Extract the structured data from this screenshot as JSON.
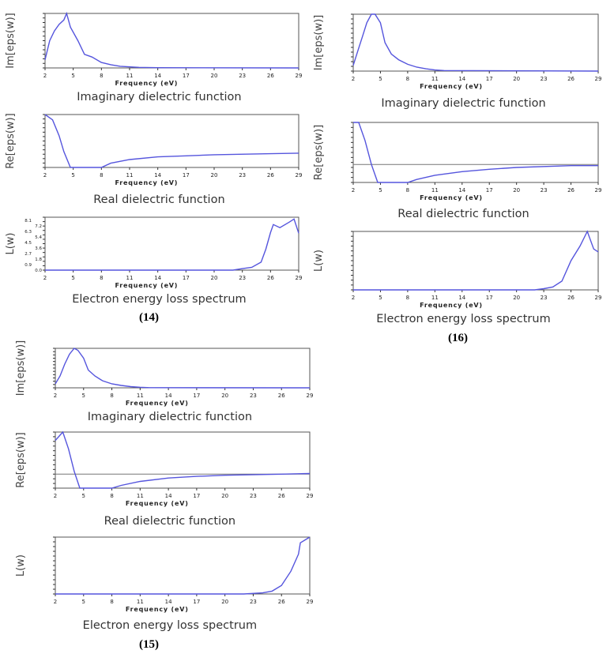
{
  "chart_data": [
    {
      "id": "p14a",
      "type": "line",
      "title": "Imaginary dielectric function",
      "xlabel": "Frequency (eV)",
      "ylabel": "Im[eps(w)]",
      "xlim": [
        2,
        29
      ],
      "ylim": [
        0,
        1
      ],
      "xticks": [
        2,
        5,
        8,
        11,
        14,
        17,
        20,
        23,
        26,
        29
      ],
      "series": [
        {
          "name": "Im",
          "x": [
            2,
            2.5,
            3,
            3.5,
            4,
            4.3,
            4.7,
            5.5,
            6.2,
            7,
            8,
            9,
            10,
            12,
            14,
            29
          ],
          "y": [
            0.15,
            0.5,
            0.68,
            0.8,
            0.88,
            1,
            0.75,
            0.5,
            0.25,
            0.2,
            0.1,
            0.06,
            0.03,
            0.01,
            0.004,
            0
          ]
        }
      ]
    },
    {
      "id": "p14b",
      "type": "line",
      "title": "Real dielectric function",
      "xlabel": "Frequency (eV)",
      "ylabel": "Re[eps(w)]",
      "xlim": [
        2,
        29
      ],
      "ylim": [
        0,
        1
      ],
      "xticks": [
        2,
        5,
        8,
        11,
        14,
        17,
        20,
        23,
        26,
        29
      ],
      "series": [
        {
          "name": "Re",
          "x": [
            2,
            2.8,
            3.5,
            4,
            4.7,
            8,
            9,
            11,
            14,
            17,
            20,
            26,
            29
          ],
          "y": [
            1,
            0.9,
            0.6,
            0.3,
            0,
            0,
            0.08,
            0.15,
            0.2,
            0.22,
            0.24,
            0.26,
            0.27
          ]
        }
      ]
    },
    {
      "id": "p14c",
      "type": "line",
      "title": "Electron energy loss spectrum",
      "xlabel": "Frequency (eV)",
      "ylabel": "L(w)",
      "xlim": [
        2,
        29
      ],
      "ylim": [
        0,
        8.6
      ],
      "xticks": [
        2,
        5,
        8,
        11,
        14,
        17,
        20,
        23,
        26,
        29
      ],
      "yticks": [
        "0.0",
        "0.9",
        "1.8",
        "2.7",
        "3.6",
        "4.5",
        "5.4",
        "6.3",
        "7.2",
        "8.1"
      ],
      "series": [
        {
          "name": "L",
          "x": [
            2,
            22,
            23,
            24,
            25,
            25.5,
            26,
            26.3,
            27,
            28,
            28.5,
            29
          ],
          "y": [
            0,
            0,
            0.25,
            0.45,
            1.3,
            3.4,
            6.1,
            7.4,
            6.9,
            7.8,
            8.3,
            6.0
          ]
        }
      ]
    },
    {
      "id": "p16a",
      "type": "line",
      "title": "Imaginary dielectric function",
      "xlabel": "Frequency (eV)",
      "ylabel": "Im[eps(w)]",
      "xlim": [
        2,
        29
      ],
      "ylim": [
        0,
        1
      ],
      "xticks": [
        2,
        5,
        8,
        11,
        14,
        17,
        20,
        23,
        26,
        29
      ],
      "series": [
        {
          "name": "Im",
          "x": [
            2,
            2.5,
            3,
            3.5,
            4,
            4.4,
            5,
            5.5,
            6.2,
            7,
            8,
            9,
            10,
            11,
            12,
            29
          ],
          "y": [
            0.1,
            0.35,
            0.6,
            0.85,
            1,
            1,
            0.85,
            0.5,
            0.3,
            0.2,
            0.12,
            0.07,
            0.04,
            0.02,
            0.01,
            0
          ]
        }
      ]
    },
    {
      "id": "p16b",
      "type": "line",
      "title": "Real dielectric function",
      "xlabel": "Frequency (eV)",
      "ylabel": "Re[eps(w)]",
      "xlim": [
        2,
        29
      ],
      "ylim": [
        0,
        1
      ],
      "xticks": [
        2,
        5,
        8,
        11,
        14,
        17,
        20,
        23,
        26,
        29
      ],
      "hline": 0.3,
      "series": [
        {
          "name": "Re",
          "x": [
            2,
            2.6,
            3.3,
            4,
            4.7,
            8,
            9,
            11,
            14,
            17,
            20,
            26,
            29
          ],
          "y": [
            1,
            1,
            0.7,
            0.3,
            0,
            0,
            0.05,
            0.12,
            0.18,
            0.22,
            0.25,
            0.28,
            0.28
          ]
        }
      ]
    },
    {
      "id": "p16c",
      "type": "line",
      "title": "Electron energy loss spectrum",
      "xlabel": "Frequency (eV)",
      "ylabel": "L(w)",
      "xlim": [
        2,
        29
      ],
      "ylim": [
        0,
        1
      ],
      "xticks": [
        2,
        5,
        8,
        11,
        14,
        17,
        20,
        23,
        26,
        29
      ],
      "series": [
        {
          "name": "L",
          "x": [
            2,
            22,
            23,
            24,
            25,
            26,
            27,
            27.8,
            28.5,
            29
          ],
          "y": [
            0,
            0,
            0.02,
            0.05,
            0.15,
            0.5,
            0.75,
            1,
            0.7,
            0.65
          ]
        }
      ]
    },
    {
      "id": "p15a",
      "type": "line",
      "title": "Imaginary dielectric function",
      "xlabel": "Frequency (eV)",
      "ylabel": "Im[eps(w)]",
      "xlim": [
        2,
        29
      ],
      "ylim": [
        0,
        1
      ],
      "xticks": [
        2,
        5,
        8,
        11,
        14,
        17,
        20,
        23,
        26,
        29
      ],
      "series": [
        {
          "name": "Im",
          "x": [
            2,
            2.5,
            3,
            3.5,
            4,
            4.4,
            5,
            5.5,
            6.2,
            7,
            8,
            9,
            10,
            11,
            12,
            29
          ],
          "y": [
            0.1,
            0.3,
            0.6,
            0.85,
            1,
            0.95,
            0.75,
            0.45,
            0.3,
            0.18,
            0.1,
            0.06,
            0.03,
            0.015,
            0.005,
            0
          ]
        }
      ]
    },
    {
      "id": "p15b",
      "type": "line",
      "title": "Real dielectric function",
      "xlabel": "Frequency (eV)",
      "ylabel": "Re[eps(w)]",
      "xlim": [
        2,
        29
      ],
      "ylim": [
        0,
        1
      ],
      "xticks": [
        2,
        5,
        8,
        11,
        14,
        17,
        20,
        23,
        26,
        29
      ],
      "hline": 0.25,
      "series": [
        {
          "name": "Re",
          "x": [
            2,
            2.8,
            3.4,
            4,
            4.6,
            8,
            9,
            11,
            14,
            17,
            20,
            26,
            29
          ],
          "y": [
            0.85,
            1,
            0.7,
            0.3,
            0,
            0,
            0.05,
            0.12,
            0.18,
            0.21,
            0.23,
            0.25,
            0.26
          ]
        }
      ]
    },
    {
      "id": "p15c",
      "type": "line",
      "title": "Electron energy loss spectrum",
      "xlabel": "Frequency (eV)",
      "ylabel": "L(w)",
      "xlim": [
        2,
        29
      ],
      "ylim": [
        0,
        1
      ],
      "xticks": [
        2,
        5,
        8,
        11,
        14,
        17,
        20,
        23,
        26,
        29
      ],
      "series": [
        {
          "name": "L",
          "x": [
            2,
            22,
            24,
            25,
            26,
            27,
            27.8,
            28,
            28.5,
            29
          ],
          "y": [
            0,
            0,
            0.02,
            0.05,
            0.15,
            0.4,
            0.7,
            0.9,
            0.95,
            1
          ]
        }
      ]
    }
  ],
  "captions": {
    "c14": "(14)",
    "c16": "(16)",
    "c15": "(15)"
  },
  "colors": {
    "line": "#5555dd",
    "axis": "#555555",
    "hline": "#777777"
  }
}
